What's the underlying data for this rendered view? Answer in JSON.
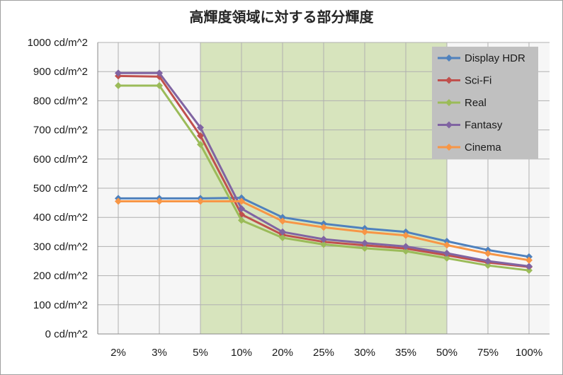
{
  "chart_data": {
    "type": "line",
    "title": "高輝度領域に対する部分輝度",
    "categories": [
      "2%",
      "3%",
      "5%",
      "10%",
      "20%",
      "25%",
      "30%",
      "35%",
      "50%",
      "75%",
      "100%"
    ],
    "y_tick_labels": [
      "0 cd/m^2",
      "100 cd/m^2",
      "200 cd/m^2",
      "300 cd/m^2",
      "400 cd/m^2",
      "500 cd/m^2",
      "600 cd/m^2",
      "700 cd/m^2",
      "800 cd/m^2",
      "900 cd/m^2",
      "1000 cd/m^2"
    ],
    "ylim": [
      0,
      1000
    ],
    "y_step": 100,
    "grid": true,
    "legend_position": "top-right",
    "highlight_band": {
      "from_category": "5%",
      "to_category": "50%",
      "color": "#d7e4bd"
    },
    "series": [
      {
        "name": "Display HDR",
        "color": "#4f81bd",
        "values": [
          465,
          465,
          465,
          467,
          400,
          378,
          362,
          350,
          318,
          288,
          265
        ]
      },
      {
        "name": "Sci-Fi",
        "color": "#c0504d",
        "values": [
          885,
          883,
          680,
          410,
          340,
          316,
          304,
          293,
          270,
          245,
          230
        ]
      },
      {
        "name": "Real",
        "color": "#9bbb59",
        "values": [
          852,
          852,
          650,
          390,
          330,
          307,
          294,
          284,
          260,
          235,
          218
        ]
      },
      {
        "name": "Fantasy",
        "color": "#8064a2",
        "values": [
          895,
          895,
          708,
          430,
          350,
          325,
          312,
          300,
          277,
          250,
          232
        ]
      },
      {
        "name": "Cinema",
        "color": "#f79646",
        "values": [
          455,
          455,
          455,
          455,
          387,
          366,
          350,
          338,
          305,
          276,
          253
        ]
      }
    ]
  }
}
